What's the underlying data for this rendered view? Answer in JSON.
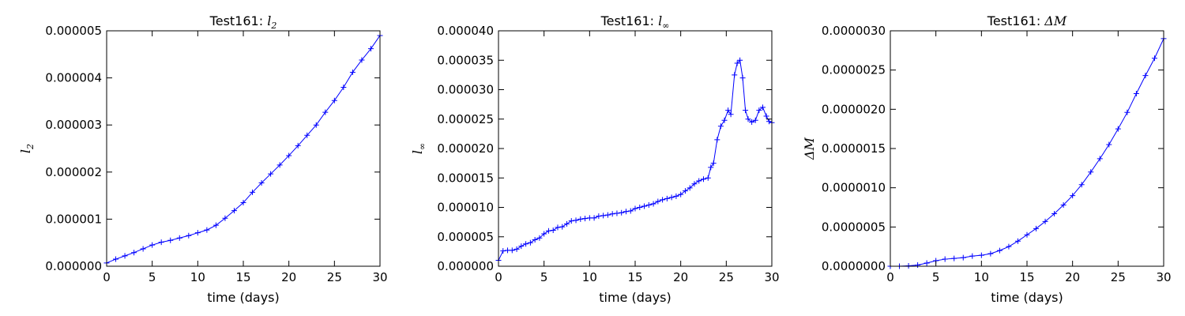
{
  "chart_data": [
    {
      "type": "line",
      "title_prefix": "Test161: ",
      "title_symbol": "l",
      "title_sub": "2",
      "ylabel_symbol": "l",
      "ylabel_sub": "2",
      "xlabel": "time (days)",
      "xlim": [
        0,
        30
      ],
      "ylim": [
        0,
        5e-06
      ],
      "xticks": [
        "0",
        "5",
        "10",
        "15",
        "20",
        "25",
        "30"
      ],
      "yticks": [
        "0.000000",
        "0.000001",
        "0.000002",
        "0.000003",
        "0.000004",
        "0.000005"
      ],
      "marker": "+",
      "color": "#0000ff",
      "grid": false,
      "x": [
        0,
        1,
        2,
        3,
        4,
        5,
        6,
        7,
        8,
        9,
        10,
        11,
        12,
        13,
        14,
        15,
        16,
        17,
        18,
        19,
        20,
        21,
        22,
        23,
        24,
        25,
        26,
        27,
        28,
        29,
        30
      ],
      "y": [
        7e-08,
        1.5e-07,
        2.2e-07,
        2.9e-07,
        3.7e-07,
        4.5e-07,
        5.1e-07,
        5.5e-07,
        6e-07,
        6.5e-07,
        7.1e-07,
        7.7e-07,
        8.7e-07,
        1.02e-06,
        1.18e-06,
        1.35e-06,
        1.57e-06,
        1.77e-06,
        1.96e-06,
        2.15e-06,
        2.35e-06,
        2.56e-06,
        2.78e-06,
        3e-06,
        3.27e-06,
        3.52e-06,
        3.8e-06,
        4.12e-06,
        4.38e-06,
        4.62e-06,
        4.9e-06
      ]
    },
    {
      "type": "line",
      "title_prefix": "Test161: ",
      "title_symbol": "l",
      "title_sub": "∞",
      "ylabel_symbol": "l",
      "ylabel_sub": "∞",
      "xlabel": "time (days)",
      "xlim": [
        0,
        30
      ],
      "ylim": [
        0,
        4e-05
      ],
      "xticks": [
        "0",
        "5",
        "10",
        "15",
        "20",
        "25",
        "30"
      ],
      "yticks": [
        "0.000000",
        "0.000005",
        "0.000010",
        "0.000015",
        "0.000020",
        "0.000025",
        "0.000030",
        "0.000035",
        "0.000040"
      ],
      "marker": "+",
      "color": "#0000ff",
      "grid": false,
      "x": [
        0,
        0.5,
        1,
        1.5,
        2,
        2.5,
        3,
        3.5,
        4,
        4.5,
        5,
        5.5,
        6,
        6.5,
        7,
        7.5,
        8,
        8.5,
        9,
        9.5,
        10,
        10.5,
        11,
        11.5,
        12,
        12.5,
        13,
        13.5,
        14,
        14.5,
        15,
        15.5,
        16,
        16.5,
        17,
        17.5,
        18,
        18.5,
        19,
        19.5,
        20,
        20.5,
        21,
        21.5,
        22,
        22.5,
        23,
        23.3,
        23.6,
        24,
        24.4,
        24.8,
        25.2,
        25.5,
        25.9,
        26.2,
        26.5,
        26.8,
        27.1,
        27.4,
        27.8,
        28.2,
        28.6,
        29,
        29.4,
        29.7,
        30
      ],
      "y": [
        1e-06,
        2.6e-06,
        2.7e-06,
        2.7e-06,
        2.9e-06,
        3.4e-06,
        3.8e-06,
        4e-06,
        4.5e-06,
        4.8e-06,
        5.5e-06,
        6e-06,
        6.1e-06,
        6.6e-06,
        6.7e-06,
        7.2e-06,
        7.7e-06,
        7.8e-06,
        8e-06,
        8.1e-06,
        8.2e-06,
        8.2e-06,
        8.5e-06,
        8.6e-06,
        8.7e-06,
        8.9e-06,
        9e-06,
        9.1e-06,
        9.3e-06,
        9.4e-06,
        9.8e-06,
        1e-05,
        1.02e-05,
        1.04e-05,
        1.06e-05,
        1.1e-05,
        1.13e-05,
        1.15e-05,
        1.17e-05,
        1.19e-05,
        1.22e-05,
        1.28e-05,
        1.33e-05,
        1.4e-05,
        1.45e-05,
        1.48e-05,
        1.5e-05,
        1.68e-05,
        1.75e-05,
        2.15e-05,
        2.38e-05,
        2.48e-05,
        2.65e-05,
        2.58e-05,
        3.25e-05,
        3.45e-05,
        3.5e-05,
        3.2e-05,
        2.65e-05,
        2.5e-05,
        2.45e-05,
        2.48e-05,
        2.65e-05,
        2.7e-05,
        2.55e-05,
        2.46e-05,
        2.44e-05
      ]
    },
    {
      "type": "line",
      "title_prefix": "Test161: ",
      "title_symbol": "ΔM",
      "title_sub": "",
      "ylabel_symbol": "ΔM",
      "ylabel_sub": "",
      "xlabel": "time (days)",
      "xlim": [
        0,
        30
      ],
      "ylim": [
        0,
        3e-06
      ],
      "xticks": [
        "0",
        "5",
        "10",
        "15",
        "20",
        "25",
        "30"
      ],
      "yticks": [
        "0.0000000",
        "0.0000005",
        "0.0000010",
        "0.0000015",
        "0.0000020",
        "0.0000025",
        "0.0000030"
      ],
      "marker": "+",
      "color": "#0000ff",
      "grid": false,
      "x": [
        0,
        1,
        2,
        3,
        4,
        5,
        6,
        7,
        8,
        9,
        10,
        11,
        12,
        13,
        14,
        15,
        16,
        17,
        18,
        19,
        20,
        21,
        22,
        23,
        24,
        25,
        26,
        27,
        28,
        29,
        30
      ],
      "y": [
        0.0,
        0.0,
        5e-09,
        1.5e-08,
        4e-08,
        7e-08,
        9e-08,
        1e-07,
        1.1e-07,
        1.3e-07,
        1.4e-07,
        1.6e-07,
        2e-07,
        2.5e-07,
        3.2e-07,
        4e-07,
        4.8e-07,
        5.7e-07,
        6.7e-07,
        7.8e-07,
        9e-07,
        1.04e-06,
        1.2e-06,
        1.37e-06,
        1.55e-06,
        1.75e-06,
        1.96e-06,
        2.2e-06,
        2.43e-06,
        2.65e-06,
        2.9e-06
      ]
    }
  ]
}
